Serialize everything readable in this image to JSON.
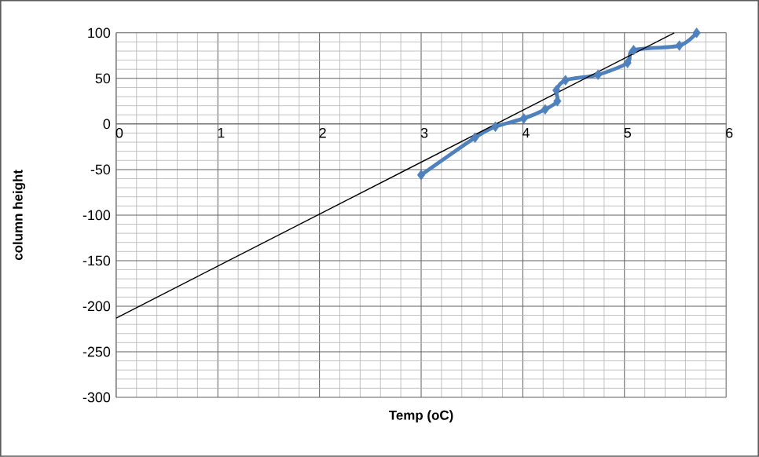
{
  "chart_data": {
    "type": "line",
    "xlabel": "Temp (oC)",
    "ylabel": "column height",
    "xlim": [
      0,
      6
    ],
    "ylim": [
      -300,
      100
    ],
    "xticks": [
      0,
      1,
      2,
      3,
      4,
      5,
      6
    ],
    "yticks": [
      -300,
      -250,
      -200,
      -150,
      -100,
      -50,
      0,
      50,
      100
    ],
    "grid": true,
    "marker": "diamond",
    "series": [
      {
        "color": "#4f81bd",
        "x": [
          3.0,
          3.53,
          3.73,
          4.01,
          4.22,
          4.34,
          4.33,
          4.42,
          4.74,
          5.03,
          5.09,
          5.54,
          5.71
        ],
        "values": [
          -56,
          -15,
          -3,
          6,
          16,
          25,
          37,
          48,
          54,
          67,
          81,
          86,
          100
        ]
      },
      {
        "color": "#000000",
        "marker": "none",
        "x": [
          0,
          5.49
        ],
        "values": [
          -213,
          100
        ]
      }
    ]
  }
}
